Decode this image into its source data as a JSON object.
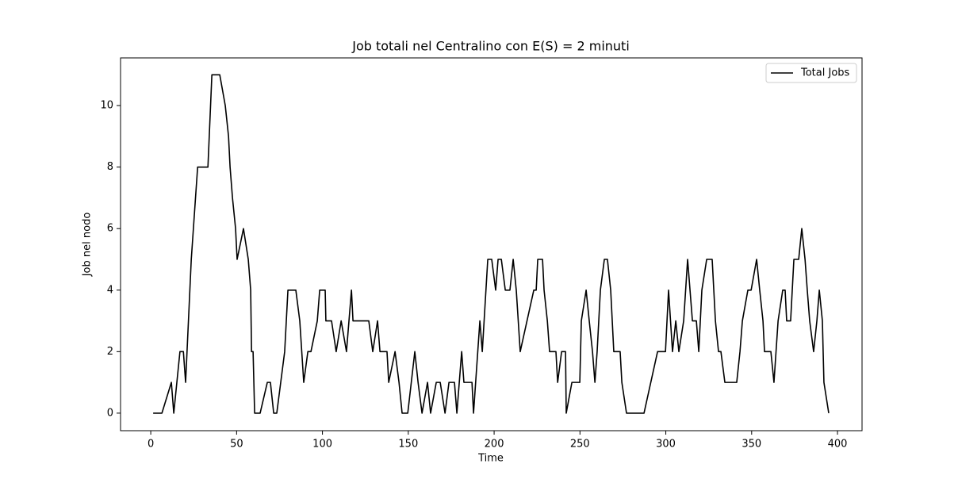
{
  "chart_data": {
    "type": "line",
    "title": "Job totali nel Centralino con E(S) = 2 minuti",
    "xlabel": "Time",
    "ylabel": "Job nel nodo",
    "xlim": [
      -17.6,
      414.3
    ],
    "ylim": [
      -0.57,
      11.55
    ],
    "xticks": [
      0,
      50,
      100,
      150,
      200,
      250,
      300,
      350,
      400
    ],
    "yticks": [
      0,
      2,
      4,
      6,
      8,
      10
    ],
    "legend": "upper right",
    "x": [
      1.4,
      6.5,
      12,
      13.4,
      17,
      19,
      20.3,
      23.6,
      27.3,
      33.3,
      35.6,
      40.2,
      43.4,
      45.3,
      46.2,
      47.6,
      49.4,
      50.3,
      54,
      56.8,
      58.2,
      58.7,
      59.6,
      60.5,
      63.7,
      67.9,
      69.7,
      71.6,
      73.4,
      78,
      79.9,
      84.5,
      86.8,
      89.1,
      91.5,
      93.3,
      97,
      98.4,
      101.6,
      102,
      105.3,
      108,
      110.9,
      114,
      116.9,
      117.8,
      127,
      129.3,
      132.1,
      133.5,
      137.6,
      138.6,
      142.3,
      144.6,
      146.4,
      149.7,
      153.8,
      155.7,
      158,
      161.2,
      163,
      166.3,
      168.6,
      171.4,
      173.7,
      176.9,
      178.3,
      181.1,
      182.4,
      187.1,
      188,
      191.7,
      193.1,
      196.3,
      198.6,
      200.9,
      202.3,
      204.2,
      206.5,
      209.2,
      211.1,
      212.9,
      215.2,
      223.1,
      224.5,
      225.4,
      228.2,
      229.1,
      231,
      232.3,
      236,
      237,
      239.3,
      241.6,
      242,
      245.3,
      249.9,
      250.8,
      253.6,
      255.4,
      257.3,
      258.7,
      260,
      261.9,
      264.2,
      266,
      267.9,
      269.7,
      273.4,
      274.4,
      277.1,
      287.3,
      295.2,
      299.8,
      301.6,
      303.9,
      305.8,
      307.6,
      310.4,
      312.7,
      315.5,
      317.8,
      319.2,
      321,
      323.8,
      327,
      328.9,
      330.7,
      332.1,
      334.4,
      341.3,
      343.2,
      344.6,
      347.8,
      349.7,
      352.9,
      354.7,
      356.6,
      357.5,
      361.2,
      363,
      365.4,
      368.1,
      369.5,
      370.4,
      372.7,
      374.6,
      377.4,
      379.2,
      381.1,
      382.4,
      383.8,
      386.1,
      388,
      389.4,
      391.2,
      392.1,
      394.9
    ],
    "series": [
      {
        "name": "Total Jobs",
        "color": "#000000",
        "values": [
          0,
          0,
          1,
          0,
          2,
          2,
          1,
          5,
          8,
          8,
          11,
          11,
          10,
          9,
          8,
          7,
          6,
          5,
          6,
          5,
          4,
          2,
          2,
          0,
          0,
          1,
          1,
          0,
          0,
          2,
          4,
          4,
          3,
          1,
          2,
          2,
          3,
          4,
          4,
          3,
          3,
          2,
          3,
          2,
          4,
          3,
          3,
          2,
          3,
          2,
          2,
          1,
          2,
          1,
          0,
          0,
          2,
          1,
          0,
          1,
          0,
          1,
          1,
          0,
          1,
          1,
          0,
          2,
          1,
          1,
          0,
          3,
          2,
          5,
          5,
          4,
          5,
          5,
          4,
          4,
          5,
          4,
          2,
          4,
          4,
          5,
          5,
          4,
          3,
          2,
          2,
          1,
          2,
          2,
          0,
          1,
          1,
          3,
          4,
          3,
          2,
          1,
          2,
          4,
          5,
          5,
          4,
          2,
          2,
          1,
          0,
          0,
          2,
          2,
          4,
          2,
          3,
          2,
          3,
          5,
          3,
          3,
          2,
          4,
          5,
          5,
          3,
          2,
          2,
          1,
          1,
          2,
          3,
          4,
          4,
          5,
          4,
          3,
          2,
          2,
          1,
          3,
          4,
          4,
          3,
          3,
          5,
          5,
          6,
          5,
          4,
          3,
          2,
          3,
          4,
          3,
          1,
          0
        ]
      }
    ]
  }
}
